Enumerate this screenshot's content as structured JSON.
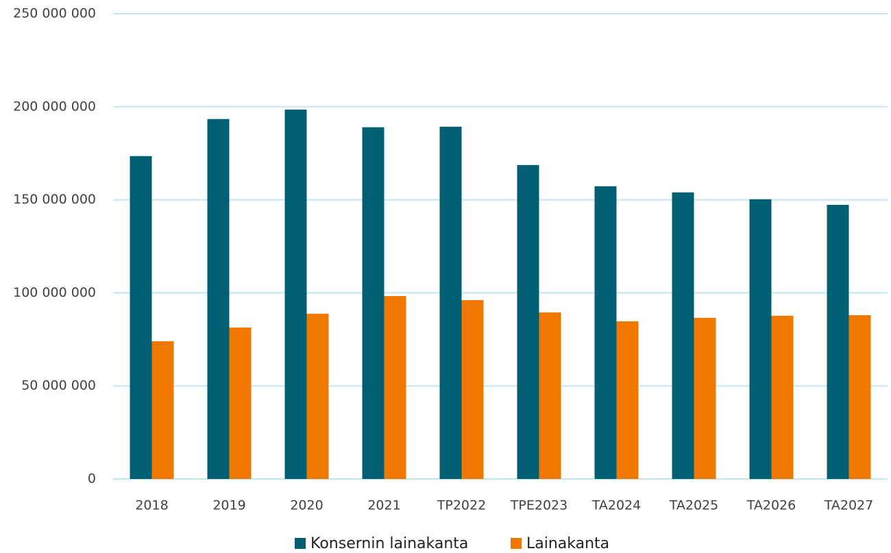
{
  "chart_data": {
    "type": "bar",
    "categories": [
      "2018",
      "2019",
      "2020",
      "2021",
      "TP2022",
      "TPE2023",
      "TA2024",
      "TA2025",
      "TA2026",
      "TA2027"
    ],
    "series": [
      {
        "name": "Konsernin lainakanta",
        "color": "#005f73",
        "values": [
          173500000,
          193400000,
          198500000,
          189000000,
          189300000,
          168700000,
          157300000,
          154000000,
          150300000,
          147300000
        ]
      },
      {
        "name": "Lainakanta",
        "color": "#f07800",
        "values": [
          74000000,
          81400000,
          88800000,
          98300000,
          96100000,
          89500000,
          84700000,
          86600000,
          87700000,
          88000000
        ]
      }
    ],
    "ylim": [
      0,
      250000000
    ],
    "yticks": [
      0,
      {
        "value": 50000000,
        "label": "50 000 000"
      },
      {
        "value": 100000000,
        "label": "100 000 000"
      },
      {
        "value": 150000000,
        "label": "150 000 000"
      },
      {
        "value": 200000000,
        "label": "200 000 000"
      },
      {
        "value": 250000000,
        "label": "250 000 000"
      }
    ],
    "grid": true,
    "legend": "bottom"
  }
}
